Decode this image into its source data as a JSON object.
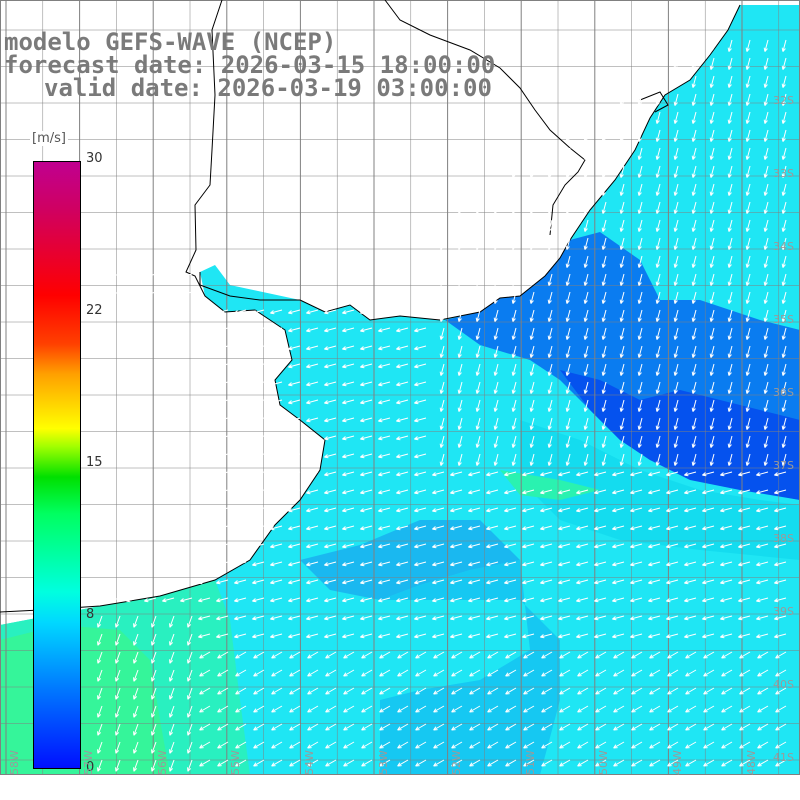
{
  "title": {
    "line1": "modelo GEFS-WAVE (NCEP)",
    "line2": "forecast date: 2026-03-15 18:00:00",
    "line3": "valid date: 2026-03-19 03:00:00"
  },
  "colorbar": {
    "unit": "[m/s]",
    "ticks": [
      "30",
      "22",
      "15",
      "8",
      "0"
    ],
    "min": 0,
    "max": 30
  },
  "axes": {
    "lat_labels": [
      "32S",
      "33S",
      "34S",
      "35S",
      "36S",
      "37S",
      "38S",
      "39S",
      "40S",
      "41S"
    ],
    "lon_labels": [
      "58W",
      "57W",
      "56W",
      "55W",
      "54W",
      "53W",
      "52W",
      "51W",
      "50W",
      "49W",
      "48W"
    ]
  },
  "colors": {
    "land": "#ffffff",
    "coast": "#000000",
    "grid": "#808080",
    "arrows": "#ffffff",
    "title_text": "#7a7a7a"
  }
}
